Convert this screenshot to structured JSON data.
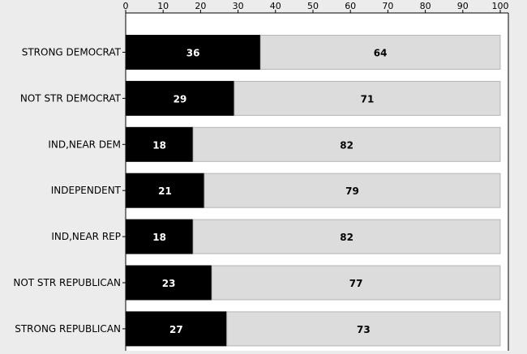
{
  "chart_data": {
    "type": "bar",
    "orientation": "horizontal",
    "stacked": true,
    "title": "",
    "xlabel": "",
    "ylabel": "",
    "xlim": [
      0,
      100
    ],
    "x_ticks": [
      0,
      10,
      20,
      30,
      40,
      50,
      60,
      70,
      80,
      90,
      100
    ],
    "x_axis_position": "top",
    "grid": false,
    "legend": "none",
    "categories": [
      "STRONG DEMOCRAT",
      "NOT STR DEMOCRAT",
      "IND,NEAR DEM",
      "INDEPENDENT",
      "IND,NEAR REP",
      "NOT STR REPUBLICAN",
      "STRONG REPUBLICAN"
    ],
    "series": [
      {
        "values": [
          36,
          29,
          18,
          21,
          18,
          23,
          27
        ],
        "color": "#000000",
        "label_color": "#ffffff"
      },
      {
        "values": [
          64,
          71,
          82,
          79,
          82,
          77,
          73
        ],
        "color": "#dcdcdc",
        "label_color": "#000000"
      }
    ],
    "data_labels_as_printed": [
      [
        "36",
        "29",
        "18",
        "21",
        "18",
        "23",
        "27"
      ],
      [
        "64",
        "71",
        "82",
        "79",
        "82",
        "77",
        "73"
      ]
    ],
    "colors": {
      "background": "#ececec",
      "plot_background": "#ffffff",
      "axis": "#000000",
      "bar_edge": "#b4b4b4"
    }
  }
}
